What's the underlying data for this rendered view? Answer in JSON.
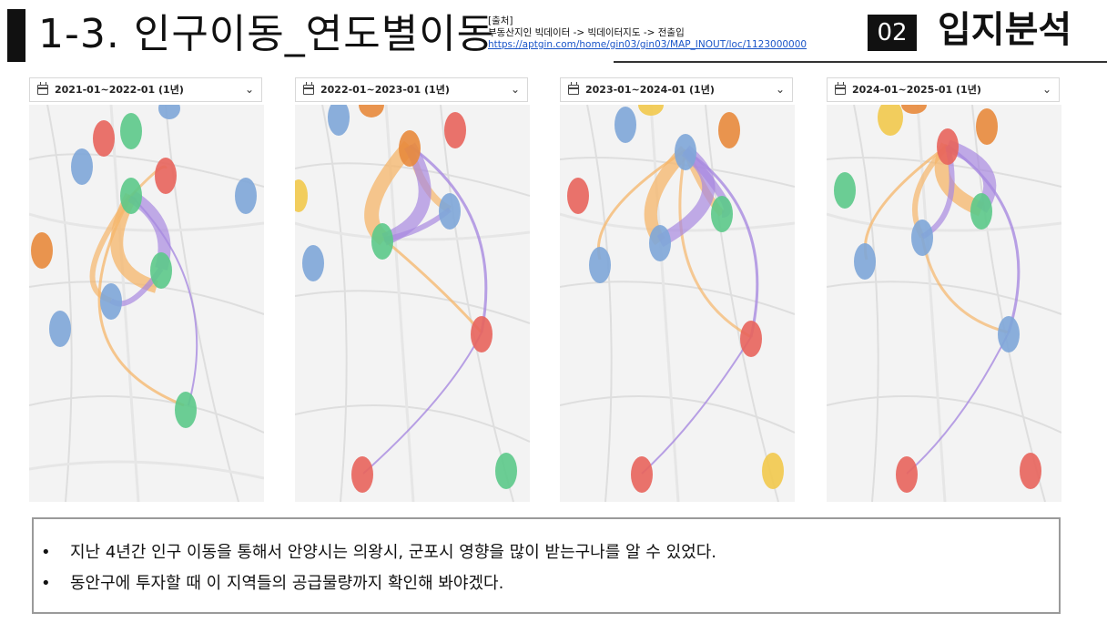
{
  "header": {
    "title": "1-3. 인구이동_연도별이동",
    "source_label": "[출처]",
    "source_path": "부동산지인 빅데이터 -> 빅데이터지도 -> 전출입",
    "source_url": "https://aptgin.com/home/gin03/gin03/MAP_INOUT/loc/1123000000",
    "section_number": "02",
    "section_title": "입지분석"
  },
  "panels": [
    {
      "period": "2021-01~2022-01 (1년)"
    },
    {
      "period": "2022-01~2023-01 (1년)"
    },
    {
      "period": "2023-01~2024-01 (1년)"
    },
    {
      "period": "2024-01~2025-01 (1년)"
    }
  ],
  "colors": {
    "red": "#e8645c",
    "green": "#5cc98a",
    "blue": "#7ea6d8",
    "orange": "#e88a3c",
    "yellow": "#f2c94c",
    "flow_orange": "#f5b56a",
    "flow_purple": "#a889e0"
  },
  "notes": {
    "items": [
      "지난 4년간 인구 이동을 통해서 안양시는 의왕시, 군포시 영향을 많이 받는구나를 알 수 있었다.",
      "동안구에 투자할 때 이 지역들의 공급물량까지 확인해 봐야겠다."
    ]
  }
}
